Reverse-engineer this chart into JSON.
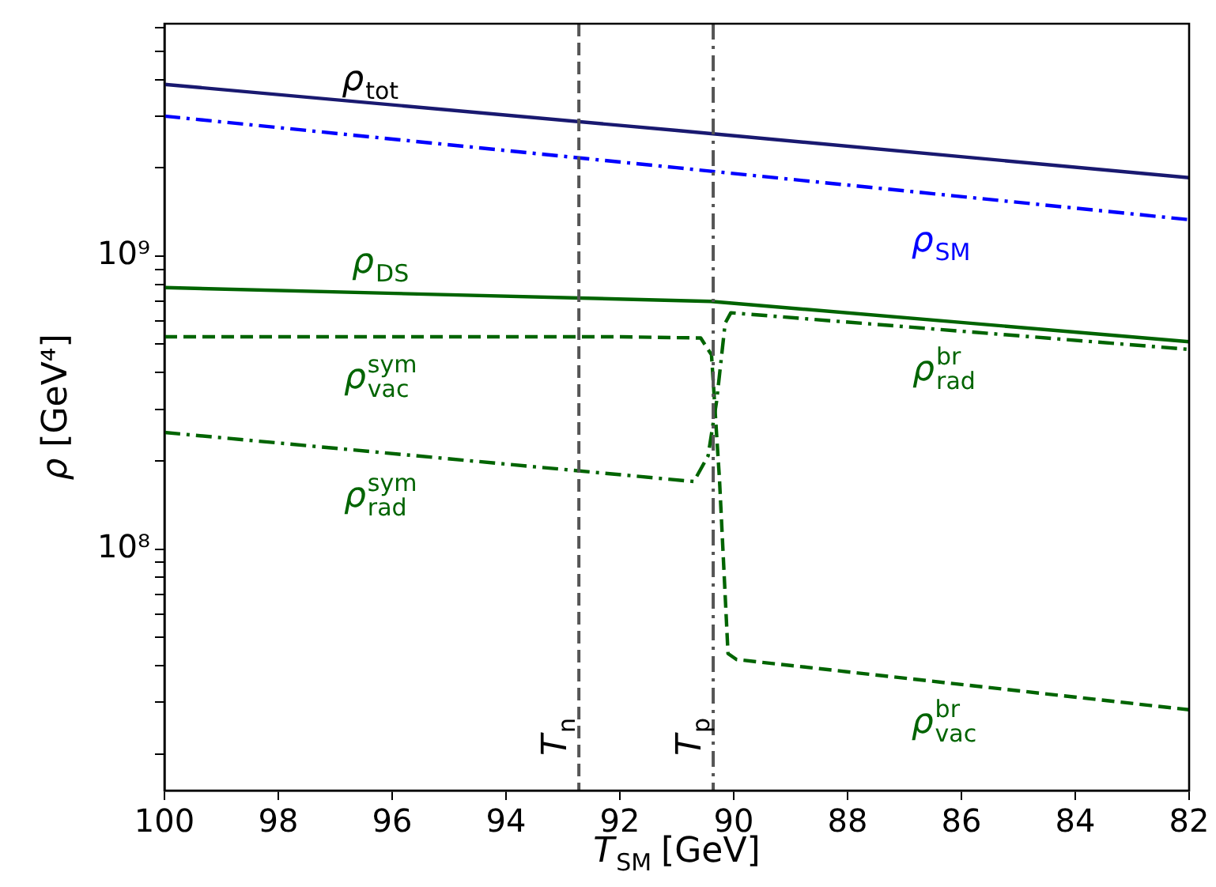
{
  "chart_data": {
    "type": "line",
    "xlabel": "T$_{SM}$ [GeV]",
    "ylabel": "ρ [GeV⁴]",
    "log": "y",
    "grid": false,
    "legend": false,
    "marker": "none",
    "xlim": [
      100,
      82
    ],
    "xticks": [
      100,
      98,
      96,
      94,
      92,
      90,
      88,
      86,
      84,
      82
    ],
    "ylim": [
      15000000,
      6200000000
    ],
    "yticks": [
      {
        "value": 20000000,
        "label": null
      },
      {
        "value": 30000000,
        "label": null
      },
      {
        "value": 40000000,
        "label": null
      },
      {
        "value": 50000000,
        "label": null
      },
      {
        "value": 60000000,
        "label": null
      },
      {
        "value": 70000000,
        "label": null
      },
      {
        "value": 80000000,
        "label": null
      },
      {
        "value": 90000000,
        "label": null
      },
      {
        "value": 100000000,
        "label": "10⁸"
      },
      {
        "value": 200000000,
        "label": null
      },
      {
        "value": 300000000,
        "label": null
      },
      {
        "value": 400000000,
        "label": null
      },
      {
        "value": 500000000,
        "label": null
      },
      {
        "value": 600000000,
        "label": null
      },
      {
        "value": 700000000,
        "label": null
      },
      {
        "value": 800000000,
        "label": null
      },
      {
        "value": 900000000,
        "label": null
      },
      {
        "value": 1000000000,
        "label": "10⁹"
      },
      {
        "value": 2000000000,
        "label": null
      },
      {
        "value": 3000000000,
        "label": null
      },
      {
        "value": 4000000000,
        "label": null
      },
      {
        "value": 5000000000,
        "label": null
      },
      {
        "value": 6000000000,
        "label": null
      }
    ],
    "series": [
      {
        "name": "ρ$_{tot}$",
        "color": "#191970",
        "line_style": "solid",
        "x": [
          100,
          91,
          82
        ],
        "values": [
          3850000000,
          2680000000,
          1850000000
        ]
      },
      {
        "name": "ρ$_{SM}$",
        "color": "#0000ff",
        "line_style": "dashdot",
        "x": [
          100,
          91,
          82
        ],
        "values": [
          3000000000,
          2000000000,
          1330000000
        ]
      },
      {
        "name": "ρ$_{DS}$",
        "color": "#006400",
        "line_style": "solid",
        "x": [
          100,
          90.4,
          82
        ],
        "values": [
          780000000,
          700000000,
          510000000
        ]
      },
      {
        "color": "#006400",
        "line_style": "dashed",
        "x": [
          100,
          92,
          90.58,
          90.39,
          90.25,
          90.1,
          89.95,
          82
        ],
        "values": [
          530000000,
          530000000,
          525000000,
          460000000,
          173000000,
          44000000,
          42000000,
          28300000
        ]
      },
      {
        "color": "#006400",
        "line_style": "dashdot",
        "x": [
          100,
          90.7,
          90.45,
          90.3,
          90.15,
          90.05,
          82
        ],
        "values": [
          250000000,
          170000000,
          208000000,
          320000000,
          590000000,
          640000000,
          480000000
        ]
      }
    ],
    "ref_lines": [
      {
        "axis": "x",
        "value": 92.72,
        "label": "T$_{n}$",
        "color": "#555555",
        "line_style": "dashed"
      },
      {
        "axis": "x",
        "value": 90.36,
        "label": "T$_{p}$",
        "color": "#555555",
        "line_style": "dashdot"
      }
    ],
    "annotations": [
      "ρ$^{sym}$$_{vac}$",
      "ρ$^{sym}$$_{rad}$",
      "ρ$^{br}$$_{rad}$",
      "ρ$^{br}$$_{vac}$"
    ]
  }
}
